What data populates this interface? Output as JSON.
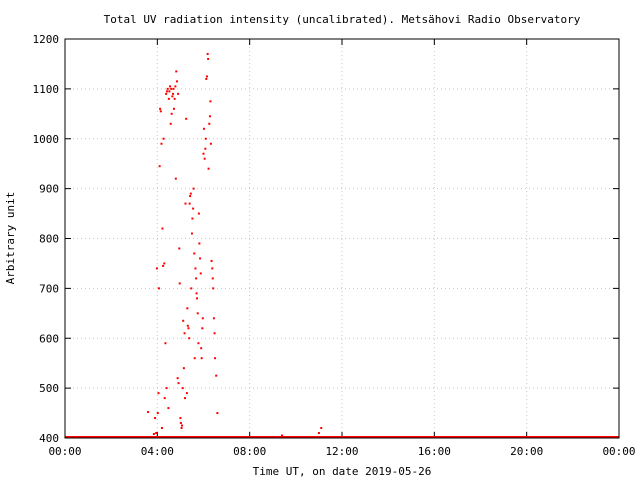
{
  "chart_data": {
    "type": "scatter",
    "title": "Total UV radiation intensity (uncalibrated). Metsähovi Radio Observatory",
    "xlabel": "Time UT, on date 2019-05-26",
    "ylabel": "Arbitrary unit",
    "xlim": [
      0,
      24
    ],
    "ylim": [
      400,
      1200
    ],
    "x_ticks": [
      0,
      4,
      8,
      12,
      16,
      20,
      24
    ],
    "x_tick_labels": [
      "00:00",
      "04:00",
      "08:00",
      "12:00",
      "16:00",
      "20:00",
      "00:00"
    ],
    "y_ticks": [
      400,
      500,
      600,
      700,
      800,
      900,
      1000,
      1100,
      1200
    ],
    "y_tick_labels": [
      "400",
      "500",
      "600",
      "700",
      "800",
      "900",
      "1000",
      "1100",
      "1200"
    ],
    "grid": true,
    "legend": "none",
    "color": "#ff0000",
    "baseline": {
      "y": 400,
      "x_start": 0,
      "x_end": 24
    },
    "x": [
      3.6,
      3.85,
      3.9,
      3.95,
      3.98,
      4.02,
      4.05,
      4.07,
      4.1,
      4.12,
      4.15,
      4.18,
      4.2,
      4.22,
      4.25,
      4.27,
      4.3,
      4.32,
      4.35,
      4.38,
      4.4,
      4.42,
      4.45,
      4.48,
      4.5,
      4.52,
      4.55,
      4.58,
      4.6,
      4.62,
      4.65,
      4.68,
      4.7,
      4.72,
      4.75,
      4.78,
      4.8,
      4.82,
      4.85,
      4.88,
      4.9,
      4.92,
      4.95,
      4.97,
      5.0,
      5.02,
      5.05,
      5.07,
      5.1,
      5.12,
      5.15,
      5.18,
      5.2,
      5.22,
      5.25,
      5.28,
      5.3,
      5.32,
      5.35,
      5.38,
      5.4,
      5.42,
      5.45,
      5.47,
      5.5,
      5.52,
      5.55,
      5.57,
      5.6,
      5.62,
      5.65,
      5.68,
      5.7,
      5.72,
      5.75,
      5.78,
      5.8,
      5.82,
      5.85,
      5.88,
      5.9,
      5.92,
      5.95,
      5.97,
      6.0,
      6.02,
      6.05,
      6.08,
      6.1,
      6.12,
      6.15,
      6.18,
      6.2,
      6.22,
      6.25,
      6.28,
      6.3,
      6.32,
      6.35,
      6.38,
      6.4,
      6.42,
      6.45,
      6.48,
      6.5,
      6.55,
      6.6,
      9.4,
      11.0,
      11.1
    ],
    "y": [
      452,
      408,
      440,
      410,
      740,
      450,
      490,
      700,
      945,
      1060,
      1055,
      990,
      420,
      820,
      745,
      1000,
      750,
      480,
      590,
      1090,
      500,
      1095,
      1100,
      460,
      1080,
      1095,
      1105,
      1030,
      1100,
      1050,
      1085,
      1090,
      1100,
      1060,
      1080,
      1105,
      920,
      1135,
      1115,
      520,
      1090,
      510,
      780,
      710,
      440,
      430,
      420,
      425,
      500,
      635,
      540,
      610,
      480,
      870,
      1040,
      490,
      660,
      625,
      620,
      600,
      870,
      885,
      890,
      700,
      810,
      840,
      860,
      900,
      770,
      560,
      740,
      720,
      690,
      680,
      650,
      590,
      850,
      790,
      760,
      730,
      580,
      560,
      620,
      640,
      970,
      1020,
      960,
      980,
      1000,
      1120,
      1125,
      1170,
      1160,
      940,
      1030,
      1045,
      1075,
      990,
      755,
      740,
      720,
      700,
      640,
      610,
      560,
      525,
      450,
      405,
      410,
      420
    ]
  }
}
